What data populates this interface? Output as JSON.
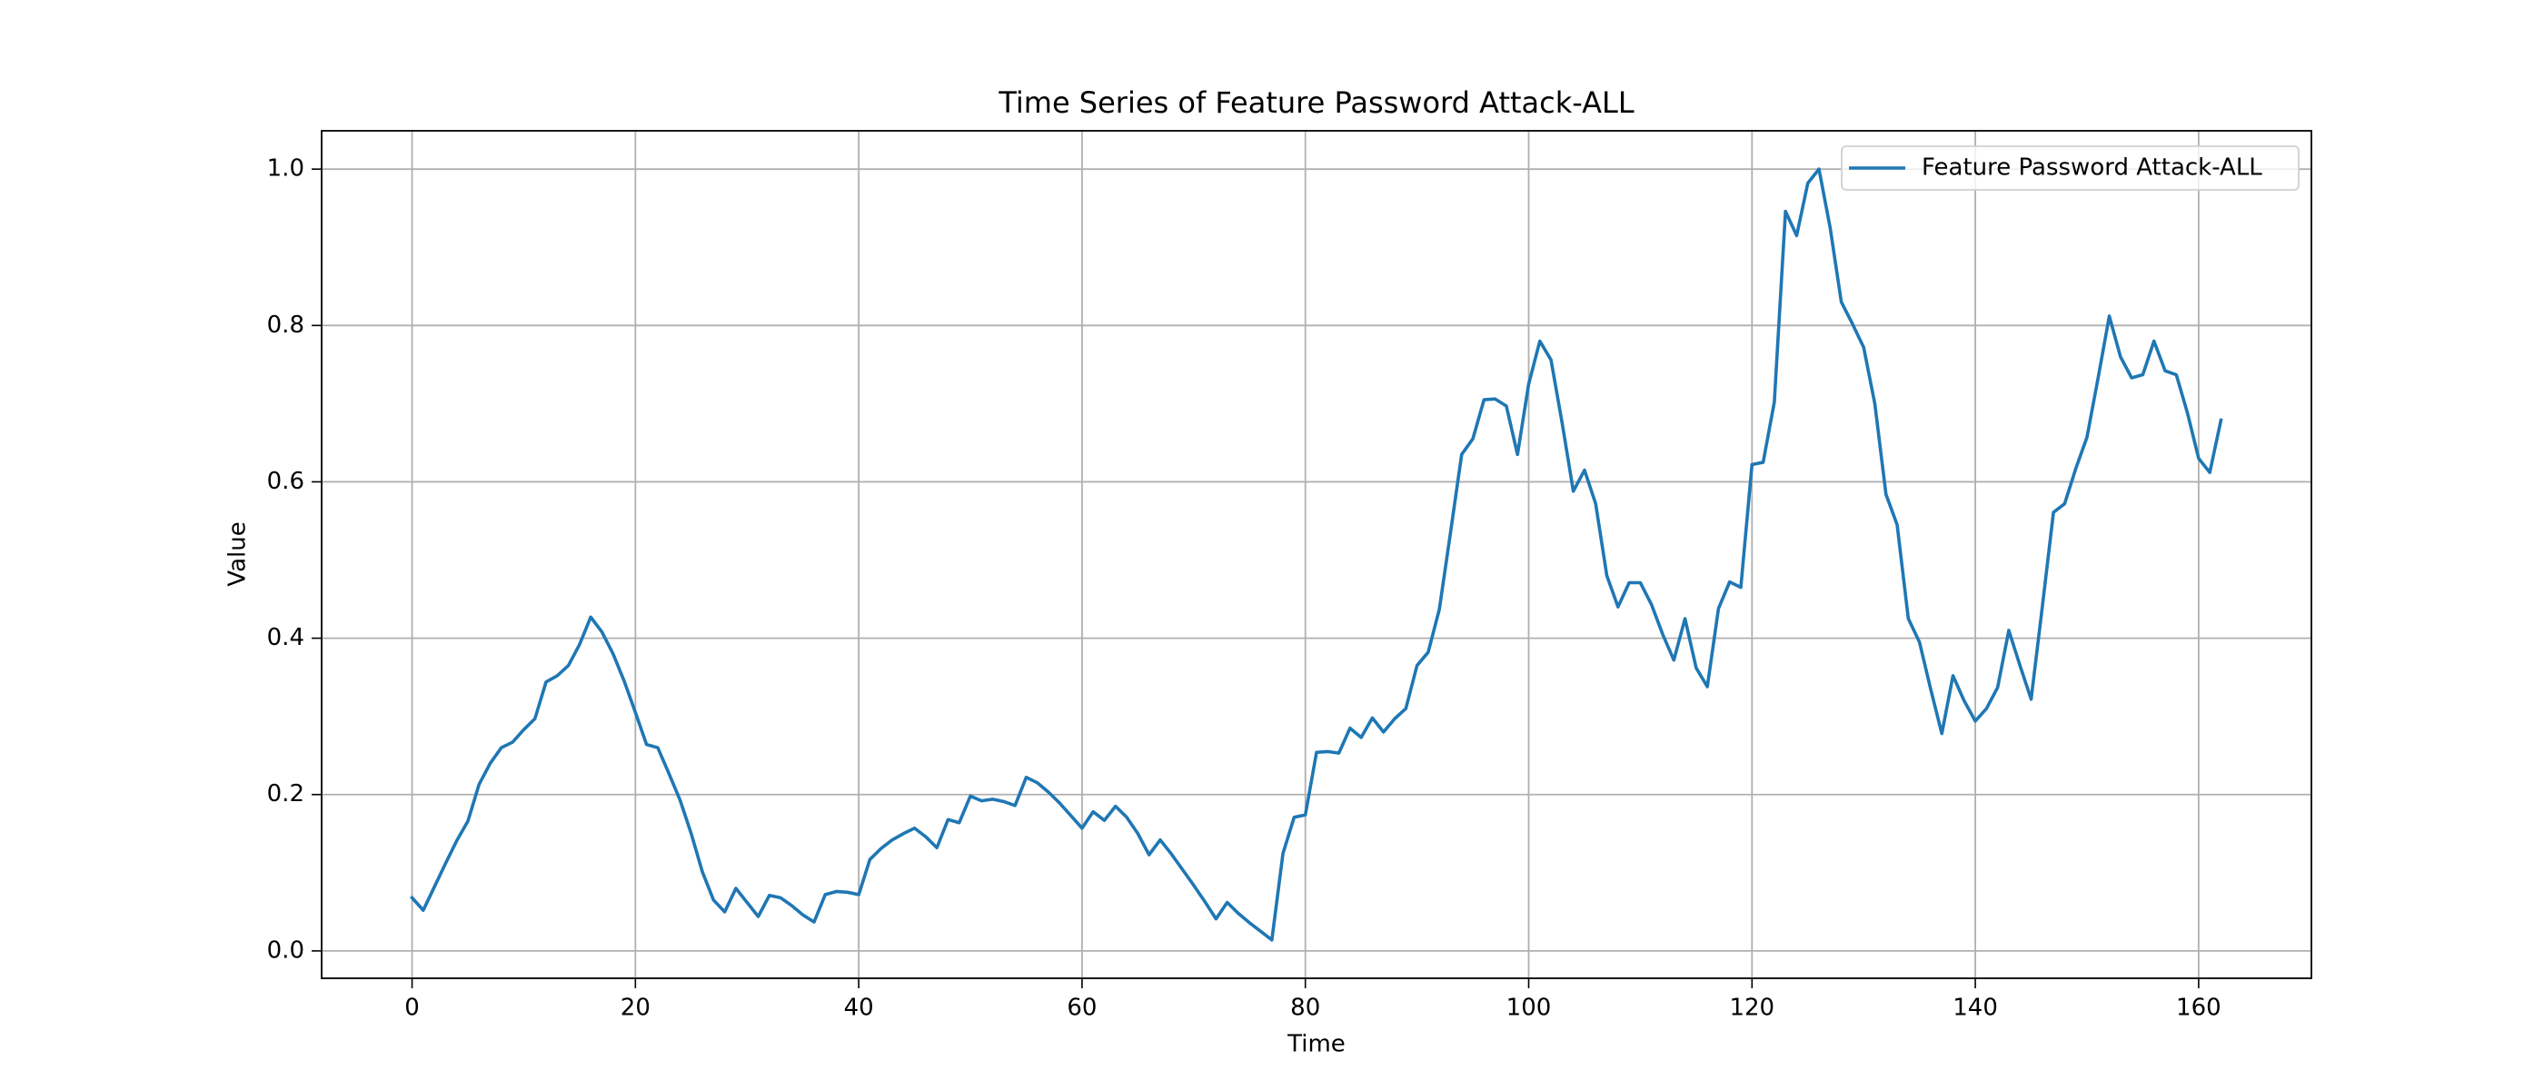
{
  "chart_data": {
    "type": "line",
    "title": "Time Series of Feature Password Attack-ALL",
    "x_label": "Time",
    "y_label": "Value",
    "x": [
      0,
      1,
      2,
      3,
      4,
      5,
      6,
      7,
      8,
      9,
      10,
      11,
      12,
      13,
      14,
      15,
      16,
      17,
      18,
      19,
      20,
      21,
      22,
      23,
      24,
      25,
      26,
      27,
      28,
      29,
      30,
      31,
      32,
      33,
      34,
      35,
      36,
      37,
      38,
      39,
      40,
      41,
      42,
      43,
      44,
      45,
      46,
      47,
      48,
      49,
      50,
      51,
      52,
      53,
      54,
      55,
      56,
      57,
      58,
      59,
      60,
      61,
      62,
      63,
      64,
      65,
      66,
      67,
      68,
      69,
      70,
      71,
      72,
      73,
      74,
      75,
      76,
      77,
      78,
      79,
      80,
      81,
      82,
      83,
      84,
      85,
      86,
      87,
      88,
      89,
      90,
      91,
      92,
      93,
      94,
      95,
      96,
      97,
      98,
      99,
      100,
      101,
      102,
      103,
      104,
      105,
      106,
      107,
      108,
      109,
      110,
      111,
      112,
      113,
      114,
      115,
      116,
      117,
      118,
      119,
      120,
      121,
      122,
      123,
      124,
      125,
      126,
      127,
      128,
      129,
      130,
      131,
      132,
      133,
      134,
      135,
      136,
      137,
      138,
      139,
      140,
      141,
      142,
      143,
      144,
      145,
      146,
      147,
      148,
      149,
      150,
      151,
      152,
      153,
      154,
      155,
      156,
      157,
      158,
      159,
      160,
      161,
      162
    ],
    "series": [
      {
        "name": "Feature Password Attack-ALL",
        "color": "#1f77b4",
        "values": [
          0.068,
          0.052,
          0.082,
          0.112,
          0.141,
          0.166,
          0.213,
          0.24,
          0.26,
          0.267,
          0.283,
          0.297,
          0.344,
          0.352,
          0.365,
          0.392,
          0.427,
          0.408,
          0.38,
          0.345,
          0.305,
          0.264,
          0.26,
          0.227,
          0.193,
          0.15,
          0.101,
          0.065,
          0.05,
          0.08,
          0.062,
          0.044,
          0.071,
          0.068,
          0.058,
          0.046,
          0.037,
          0.072,
          0.076,
          0.075,
          0.072,
          0.117,
          0.131,
          0.142,
          0.15,
          0.157,
          0.146,
          0.132,
          0.168,
          0.164,
          0.198,
          0.192,
          0.194,
          0.191,
          0.186,
          0.222,
          0.215,
          0.203,
          0.189,
          0.173,
          0.157,
          0.178,
          0.167,
          0.185,
          0.171,
          0.15,
          0.123,
          0.142,
          0.124,
          0.104,
          0.084,
          0.063,
          0.041,
          0.062,
          0.048,
          0.036,
          0.025,
          0.014,
          0.125,
          0.171,
          0.174,
          0.254,
          0.255,
          0.253,
          0.285,
          0.273,
          0.298,
          0.28,
          0.297,
          0.31,
          0.365,
          0.382,
          0.437,
          0.535,
          0.635,
          0.655,
          0.705,
          0.706,
          0.697,
          0.635,
          0.725,
          0.78,
          0.756,
          0.675,
          0.588,
          0.615,
          0.572,
          0.48,
          0.44,
          0.471,
          0.471,
          0.443,
          0.405,
          0.372,
          0.425,
          0.362,
          0.338,
          0.438,
          0.472,
          0.465,
          0.622,
          0.625,
          0.702,
          0.946,
          0.915,
          0.982,
          1.0,
          0.925,
          0.83,
          0.802,
          0.772,
          0.7,
          0.584,
          0.545,
          0.425,
          0.395,
          0.335,
          0.278,
          0.352,
          0.32,
          0.294,
          0.31,
          0.337,
          0.41,
          0.365,
          0.322,
          0.44,
          0.561,
          0.572,
          0.617,
          0.657,
          0.733,
          0.812,
          0.76,
          0.733,
          0.737,
          0.78,
          0.742,
          0.737,
          0.688,
          0.63,
          0.612,
          0.679
        ]
      }
    ],
    "xlim": [
      -8.1,
      170.1
    ],
    "xticks": [
      0,
      20,
      40,
      60,
      80,
      100,
      120,
      140,
      160
    ],
    "ylim": [
      -0.035,
      1.049
    ],
    "yticks": [
      {
        "value": 0,
        "label": "0.0"
      },
      {
        "value": 0.2,
        "label": "0.2"
      },
      {
        "value": 0.4,
        "label": "0.4"
      },
      {
        "value": 0.6,
        "label": "0.6"
      },
      {
        "value": 0.8,
        "label": "0.8"
      },
      {
        "value": 1,
        "label": "1.0"
      }
    ],
    "grid": true,
    "legend": "upper-right"
  }
}
